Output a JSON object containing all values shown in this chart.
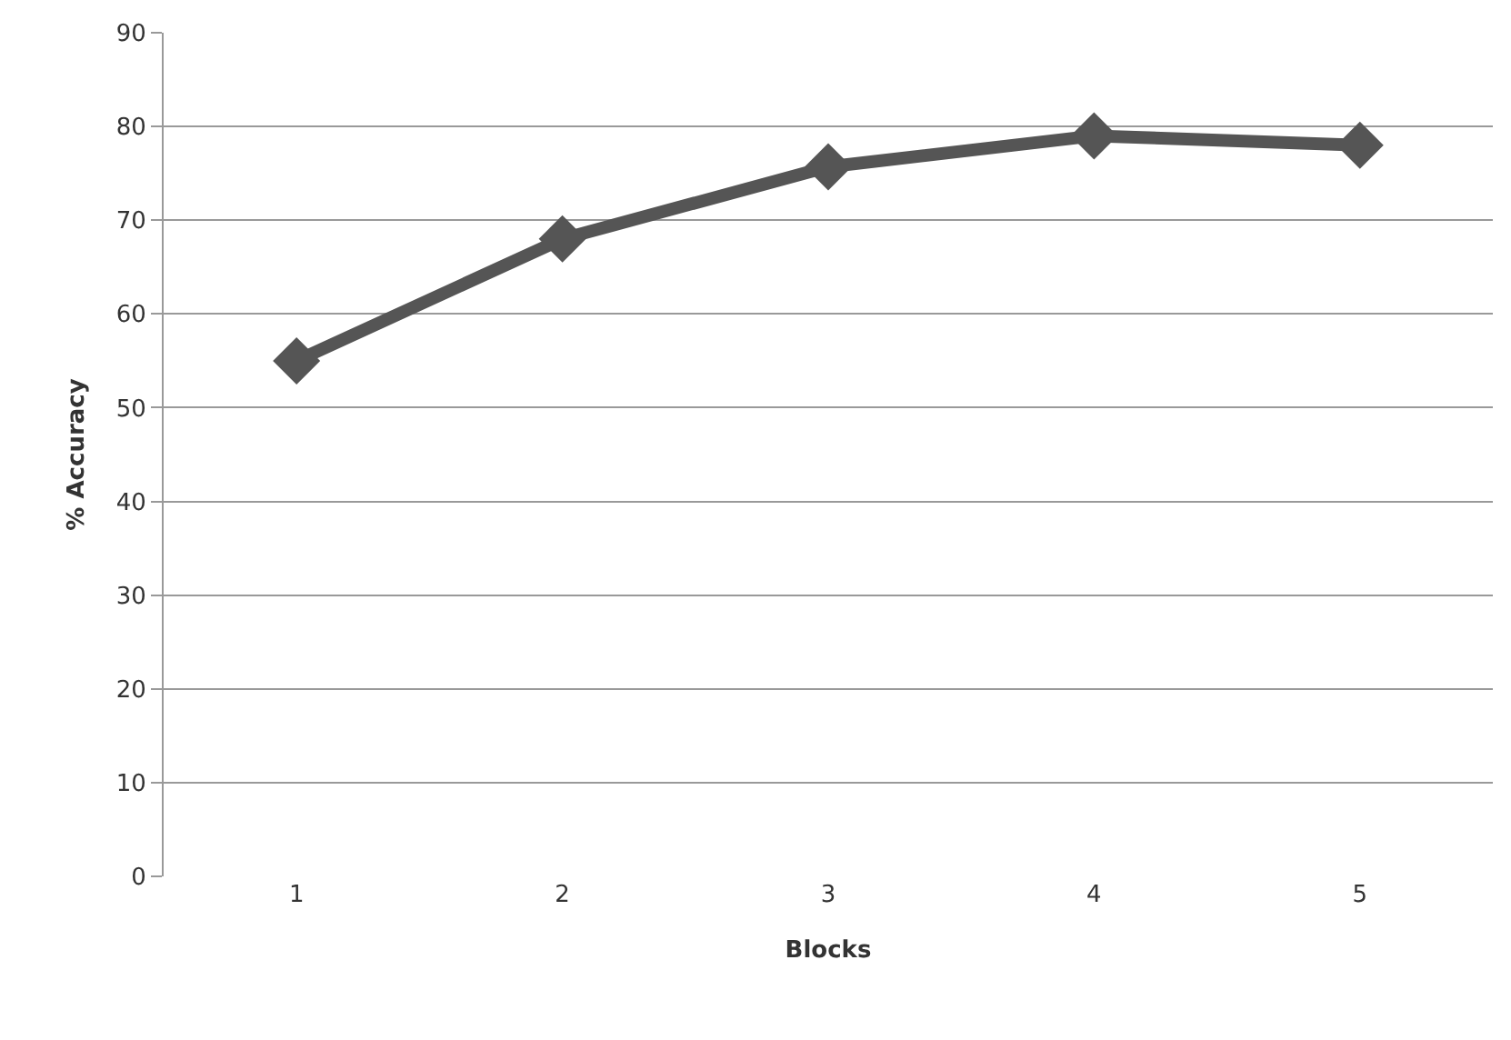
{
  "chart_data": {
    "type": "line",
    "xlabel": "Blocks",
    "ylabel": "% Accuracy",
    "categories": [
      "1",
      "2",
      "3",
      "4",
      "5"
    ],
    "series": [
      {
        "color": "#555555",
        "values": [
          55,
          68,
          75.7,
          79,
          78
        ]
      }
    ],
    "ylim": [
      0,
      90
    ],
    "yticks": [
      0,
      10,
      20,
      30,
      40,
      50,
      60,
      70,
      80,
      90
    ],
    "grid": "y",
    "marker": "diamond",
    "line_style": "solid",
    "legend": false
  }
}
